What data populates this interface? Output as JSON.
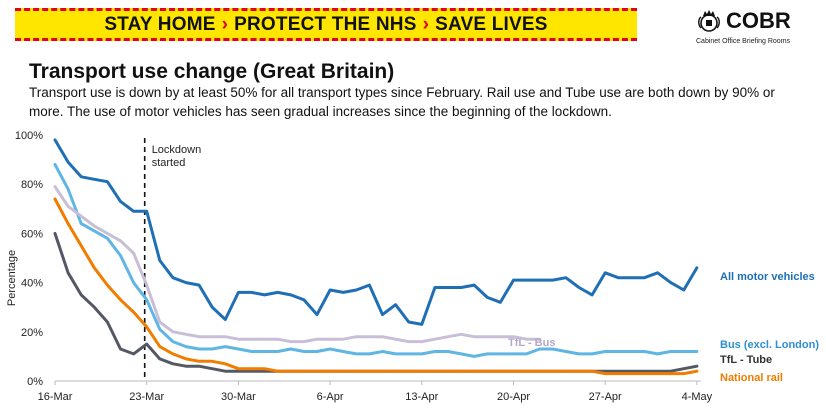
{
  "banner": {
    "parts": [
      "STAY HOME",
      "PROTECT THE NHS",
      "SAVE LIVES"
    ],
    "separator": "›"
  },
  "logo": {
    "name": "COBR",
    "subtitle": "Cabinet Office Briefing Rooms",
    "icon": "crown-crest-icon"
  },
  "heading": {
    "title": "Transport use change (Great Britain)",
    "description": "Transport use is down by at least 50% for all transport types since February. Rail use and Tube use are both down by 90% or more. The use of motor vehicles has seen gradual increases since the beginning of the lockdown."
  },
  "chart_data": {
    "type": "line",
    "title": "",
    "xlabel": "",
    "ylabel": "Percentage",
    "ylim": [
      0,
      100
    ],
    "yticks": [
      "0%",
      "20%",
      "40%",
      "60%",
      "80%",
      "100%"
    ],
    "xticks": [
      "16-Mar",
      "23-Mar",
      "30-Mar",
      "6-Apr",
      "13-Apr",
      "20-Apr",
      "27-Apr",
      "4-May"
    ],
    "grid": false,
    "legend": "inline labels at line ends",
    "annotation": {
      "text_lines": [
        "Lockdown",
        "started"
      ],
      "x": "23-Mar"
    },
    "x_start": "16-Mar",
    "series": [
      {
        "name": "All motor vehicles",
        "color": "#1f6fb5",
        "label_color": "#1f6fb5",
        "values": [
          98,
          89,
          83,
          82,
          81,
          73,
          69,
          69,
          49,
          42,
          40,
          39,
          30,
          25,
          36,
          36,
          35,
          36,
          35,
          33,
          27,
          37,
          36,
          37,
          39,
          27,
          31,
          24,
          23,
          38,
          38,
          38,
          39,
          34,
          32,
          41,
          41,
          41,
          41,
          42,
          38,
          35,
          44,
          42,
          42,
          42,
          44,
          40,
          37,
          46
        ]
      },
      {
        "name": "Bus (excl. London)",
        "color": "#5fb6e4",
        "label_color": "#2f8fd1",
        "values": [
          88,
          78,
          64,
          61,
          58,
          51,
          40,
          33,
          21,
          16,
          14,
          13,
          13,
          14,
          13,
          12,
          12,
          12,
          13,
          12,
          12,
          13,
          12,
          11,
          11,
          12,
          11,
          11,
          11,
          12,
          12,
          11,
          10,
          11,
          11,
          11,
          11,
          13,
          13,
          12,
          11,
          11,
          12,
          12,
          12,
          12,
          11,
          12,
          12,
          12
        ]
      },
      {
        "name": "TfL - Bus",
        "color": "#c8bfd6",
        "label_color": "#b4a9c8",
        "values": [
          79,
          71,
          67,
          63,
          60,
          57,
          52,
          39,
          24,
          20,
          19,
          18,
          18,
          18,
          17,
          17,
          17,
          17,
          16,
          16,
          17,
          17,
          17,
          18,
          18,
          18,
          17,
          16,
          16,
          17,
          18,
          19,
          18,
          18,
          18,
          18,
          17,
          17
        ]
      },
      {
        "name": "TfL - Tube",
        "color": "#545865",
        "label_color": "#333333",
        "values": [
          60,
          44,
          35,
          30,
          24,
          13,
          11,
          15,
          9,
          7,
          6,
          6,
          5,
          4,
          4,
          4,
          4,
          4,
          4,
          4,
          4,
          4,
          4,
          4,
          4,
          4,
          4,
          4,
          4,
          4,
          4,
          4,
          4,
          4,
          4,
          4,
          4,
          4,
          4,
          4,
          4,
          4,
          4,
          4,
          4,
          4,
          4,
          4,
          5,
          6
        ]
      },
      {
        "name": "National rail",
        "color": "#f07d00",
        "label_color": "#f07d00",
        "values": [
          74,
          64,
          55,
          46,
          39,
          33,
          28,
          22,
          14,
          11,
          9,
          8,
          8,
          7,
          5,
          5,
          5,
          4,
          4,
          4,
          4,
          4,
          4,
          4,
          4,
          4,
          4,
          4,
          4,
          4,
          4,
          4,
          4,
          4,
          4,
          4,
          4,
          4,
          4,
          4,
          4,
          4,
          3,
          3,
          3,
          3,
          3,
          3,
          3,
          4
        ]
      }
    ]
  }
}
